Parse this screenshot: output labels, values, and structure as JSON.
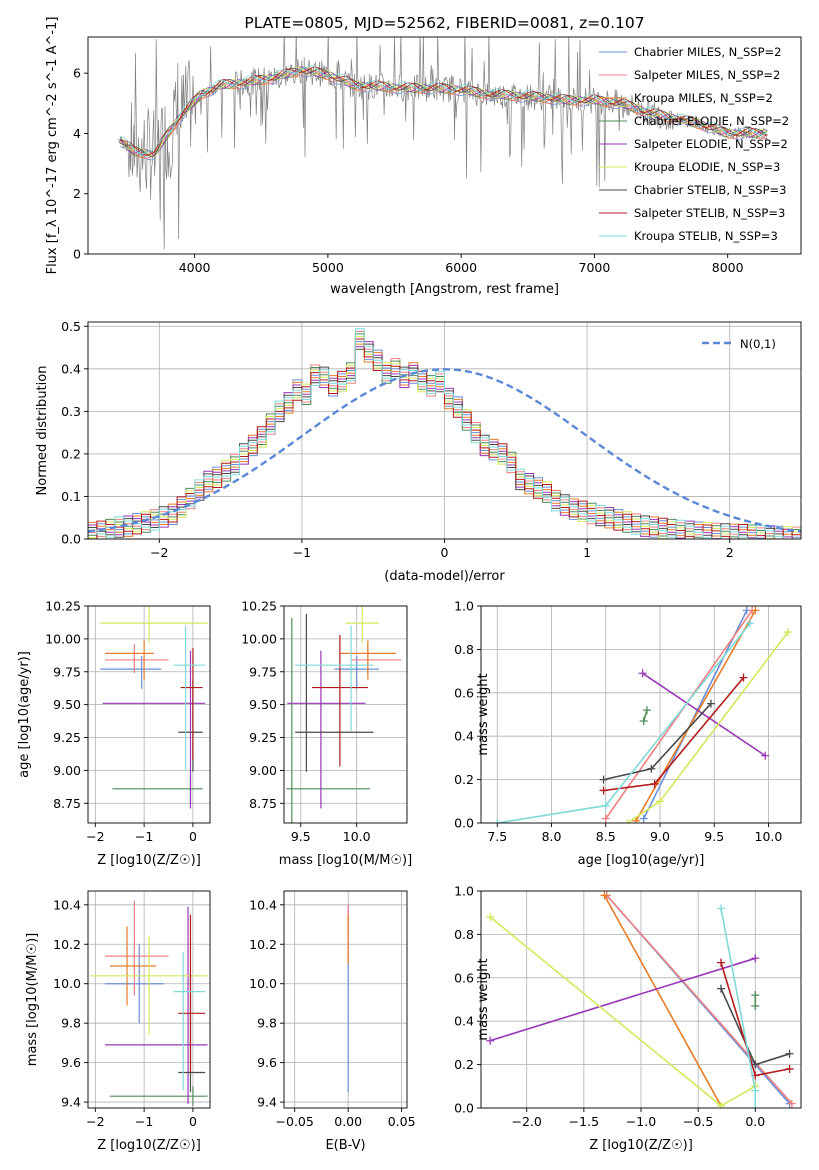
{
  "chart_data": [
    {
      "type": "line",
      "title": "PLATE=0805, MJD=52562, FIBERID=0081, z=0.107",
      "xlabel": "wavelength [Angstrom, rest frame]",
      "ylabel": "Flux [f_λ 10^-17 erg cm^-2 s^-1 A^-1]",
      "xlim": [
        3200,
        8550
      ],
      "ylim": [
        0,
        7.2
      ],
      "xticks": [
        4000,
        5000,
        6000,
        7000,
        8000
      ],
      "yticks": [
        0,
        2,
        4,
        6
      ],
      "grid": false,
      "legend_position": "top-right",
      "data_color": "#808080",
      "data_envelope": [
        [
          3430,
          3.8
        ],
        [
          3550,
          3.4
        ],
        [
          3700,
          3.3
        ],
        [
          3800,
          4.0
        ],
        [
          3900,
          4.6
        ],
        [
          4050,
          5.3
        ],
        [
          4200,
          5.6
        ],
        [
          4400,
          5.7
        ],
        [
          4600,
          5.85
        ],
        [
          4800,
          6.1
        ],
        [
          5000,
          5.95
        ],
        [
          5200,
          5.6
        ],
        [
          5400,
          5.55
        ],
        [
          5600,
          5.5
        ],
        [
          5800,
          5.5
        ],
        [
          6000,
          5.45
        ],
        [
          6200,
          5.3
        ],
        [
          6400,
          5.25
        ],
        [
          6600,
          5.2
        ],
        [
          6800,
          5.1
        ],
        [
          7000,
          5.1
        ],
        [
          7200,
          5.0
        ],
        [
          7400,
          4.7
        ],
        [
          7600,
          4.5
        ],
        [
          7800,
          4.3
        ],
        [
          8000,
          4.0
        ],
        [
          8150,
          4.0
        ],
        [
          8300,
          4.0
        ]
      ],
      "series": [
        {
          "name": "Chabrier MILES, N_SSP=2",
          "color": "#6a8fd8"
        },
        {
          "name": "Salpeter MILES, N_SSP=2",
          "color": "#f08080"
        },
        {
          "name": "Kroupa MILES, N_SSP=2",
          "color": "#e87d2a"
        },
        {
          "name": "Chabrier ELODIE, N_SSP=2",
          "color": "#4f8c5a"
        },
        {
          "name": "Salpeter ELODIE, N_SSP=2",
          "color": "#9a36b8"
        },
        {
          "name": "Kroupa ELODIE, N_SSP=3",
          "color": "#d4e85a"
        },
        {
          "name": "Chabrier STELIB, N_SSP=3",
          "color": "#4a4a4a"
        },
        {
          "name": "Salpeter STELIB, N_SSP=3",
          "color": "#b31b1b"
        },
        {
          "name": "Kroupa STELIB, N_SSP=3",
          "color": "#7fd9d9"
        }
      ]
    },
    {
      "type": "histogram",
      "xlabel": "(data-model)/error",
      "ylabel": "Normed distribution",
      "xlim": [
        -2.5,
        2.5
      ],
      "ylim": [
        0,
        0.51
      ],
      "xticks": [
        -2,
        -1,
        0,
        1,
        2
      ],
      "yticks": [
        0.0,
        0.1,
        0.2,
        0.3,
        0.4,
        0.5
      ],
      "grid": true,
      "legend": "N(0,1)",
      "legend_position": "top-right",
      "bin_width": 0.1,
      "bins_start": -2.5,
      "density": [
        0.015,
        0.018,
        0.022,
        0.028,
        0.03,
        0.036,
        0.04,
        0.045,
        0.052,
        0.058,
        0.075,
        0.095,
        0.115,
        0.135,
        0.145,
        0.16,
        0.175,
        0.2,
        0.22,
        0.24,
        0.27,
        0.3,
        0.32,
        0.35,
        0.34,
        0.385,
        0.38,
        0.36,
        0.37,
        0.39,
        0.47,
        0.44,
        0.42,
        0.39,
        0.4,
        0.38,
        0.39,
        0.37,
        0.36,
        0.37,
        0.33,
        0.31,
        0.28,
        0.25,
        0.22,
        0.21,
        0.2,
        0.18,
        0.14,
        0.13,
        0.12,
        0.11,
        0.09,
        0.08,
        0.07,
        0.065,
        0.06,
        0.055,
        0.05,
        0.045,
        0.04,
        0.035,
        0.03,
        0.028,
        0.025,
        0.022,
        0.02,
        0.018,
        0.016,
        0.015,
        0.013,
        0.012,
        0.011,
        0.01,
        0.009,
        0.008,
        0.007,
        0.006,
        0.005,
        0.004
      ]
    },
    {
      "type": "errorbar",
      "xlabel": "Z [log10(Z/Z☉)]",
      "ylabel": "age [log10(age/yr)]",
      "xlim": [
        -2.15,
        0.35
      ],
      "ylim": [
        8.6,
        10.25
      ],
      "xticks": [
        -2,
        -1,
        0
      ],
      "yticks": [
        8.75,
        9.0,
        9.25,
        9.5,
        9.75,
        10.0,
        10.25
      ],
      "points": [
        {
          "x": -1.05,
          "xerr": [
            0.85,
            0.4
          ],
          "y": 9.77,
          "yerr": [
            0.15,
            0.1
          ]
        },
        {
          "x": -1.2,
          "xerr": [
            0.6,
            0.7
          ],
          "y": 9.84,
          "yerr": [
            0.1,
            0.12
          ]
        },
        {
          "x": -1.0,
          "xerr": [
            0.8,
            0.2
          ],
          "y": 9.89,
          "yerr": [
            0.2,
            0.1
          ]
        },
        {
          "x": -0.05,
          "xerr": [
            1.6,
            0.25
          ],
          "y": 8.86,
          "yerr": [
            0.1,
            0.1
          ]
        },
        {
          "x": -0.05,
          "xerr": [
            1.8,
            0.3
          ],
          "y": 9.51,
          "yerr": [
            0.8,
            0.4
          ]
        },
        {
          "x": -0.9,
          "xerr": [
            1.0,
            1.2
          ],
          "y": 10.12,
          "yerr": [
            0.15,
            0.15
          ]
        },
        {
          "x": 0.0,
          "xerr": [
            0.3,
            0.2
          ],
          "y": 9.29,
          "yerr": [
            0.3,
            0.4
          ]
        },
        {
          "x": 0.0,
          "xerr": [
            0.25,
            0.2
          ],
          "y": 9.63,
          "yerr": [
            0.55,
            0.3
          ]
        },
        {
          "x": -0.15,
          "xerr": [
            0.25,
            0.4
          ],
          "y": 9.8,
          "yerr": [
            0.8,
            0.3
          ]
        }
      ]
    },
    {
      "type": "errorbar",
      "xlabel": "mass [log10(M/M☉)]",
      "ylabel": "",
      "xlim": [
        9.35,
        10.45
      ],
      "ylim": [
        8.6,
        10.25
      ],
      "xticks": [
        9.5,
        10.0
      ],
      "yticks": [
        8.75,
        9.0,
        9.25,
        9.5,
        9.75,
        10.0,
        10.25
      ],
      "points": [
        {
          "x": 10.0,
          "xerr": [
            0.2,
            0.2
          ],
          "y": 9.77,
          "yerr": [
            0.15,
            0.1
          ]
        },
        {
          "x": 10.1,
          "xerr": [
            0.15,
            0.3
          ],
          "y": 9.84,
          "yerr": [
            0.1,
            0.12
          ]
        },
        {
          "x": 10.1,
          "xerr": [
            0.25,
            0.25
          ],
          "y": 9.89,
          "yerr": [
            0.2,
            0.1
          ]
        },
        {
          "x": 9.42,
          "xerr": [
            0.05,
            0.7
          ],
          "y": 8.86,
          "yerr": [
            0.3,
            1.3
          ]
        },
        {
          "x": 9.68,
          "xerr": [
            0.3,
            0.4
          ],
          "y": 9.51,
          "yerr": [
            0.8,
            0.4
          ]
        },
        {
          "x": 10.05,
          "xerr": [
            0.15,
            0.15
          ],
          "y": 10.12,
          "yerr": [
            0.15,
            0.15
          ]
        },
        {
          "x": 9.55,
          "xerr": [
            0.1,
            0.6
          ],
          "y": 9.29,
          "yerr": [
            0.3,
            0.9
          ]
        },
        {
          "x": 9.85,
          "xerr": [
            0.25,
            0.25
          ],
          "y": 9.63,
          "yerr": [
            0.6,
            0.4
          ]
        },
        {
          "x": 9.95,
          "xerr": [
            0.5,
            0.2
          ],
          "y": 9.8,
          "yerr": [
            0.5,
            0.3
          ]
        }
      ]
    },
    {
      "type": "line",
      "xlabel": "age [log10(age/yr)]",
      "ylabel": "mass weight",
      "xlim": [
        7.35,
        10.3
      ],
      "ylim": [
        0,
        1.0
      ],
      "xticks": [
        7.5,
        8.0,
        8.5,
        9.0,
        9.5,
        10.0
      ],
      "yticks": [
        0.0,
        0.2,
        0.4,
        0.6,
        0.8,
        1.0
      ],
      "grid": true,
      "series": [
        {
          "color": "#6a8fd8",
          "x": [
            8.85,
            9.8
          ],
          "y": [
            0.02,
            0.98
          ]
        },
        {
          "color": "#f08080",
          "x": [
            8.5,
            9.85
          ],
          "y": [
            0.02,
            0.98
          ]
        },
        {
          "color": "#e87d2a",
          "x": [
            8.78,
            9.88
          ],
          "y": [
            0.01,
            0.98
          ]
        },
        {
          "color": "#4f8c5a",
          "x": [
            8.85,
            8.88
          ],
          "y": [
            0.47,
            0.52
          ]
        },
        {
          "color": "#9a36b8",
          "x": [
            8.84,
            9.97
          ],
          "y": [
            0.69,
            0.31
          ]
        },
        {
          "color": "#d4e85a",
          "x": [
            8.7,
            9.0,
            10.18
          ],
          "y": [
            0.0,
            0.1,
            0.88
          ]
        },
        {
          "color": "#4a4a4a",
          "x": [
            8.48,
            8.92,
            9.47
          ],
          "y": [
            0.2,
            0.25,
            0.55
          ]
        },
        {
          "color": "#b31b1b",
          "x": [
            8.48,
            8.95,
            9.77
          ],
          "y": [
            0.15,
            0.18,
            0.67
          ]
        },
        {
          "color": "#7fd9d9",
          "x": [
            7.5,
            8.5,
            9.83
          ],
          "y": [
            0.0,
            0.08,
            0.92
          ]
        }
      ]
    },
    {
      "type": "errorbar",
      "xlabel": "Z [log10(Z/Z☉)]",
      "ylabel": "mass [log10(M/M☉)]",
      "xlim": [
        -2.15,
        0.35
      ],
      "ylim": [
        9.37,
        10.47
      ],
      "xticks": [
        -2,
        -1,
        0
      ],
      "yticks": [
        9.4,
        9.6,
        9.8,
        10.0,
        10.2,
        10.4
      ],
      "points": [
        {
          "x": -1.1,
          "xerr": [
            0.7,
            0.5
          ],
          "y": 10.0,
          "yerr": [
            0.2,
            0.2
          ]
        },
        {
          "x": -1.2,
          "xerr": [
            0.6,
            0.7
          ],
          "y": 10.14,
          "yerr": [
            0.2,
            0.28
          ]
        },
        {
          "x": -1.35,
          "xerr": [
            0.35,
            0.6
          ],
          "y": 10.09,
          "yerr": [
            0.2,
            0.2
          ]
        },
        {
          "x": 0.0,
          "xerr": [
            1.7,
            0.3
          ],
          "y": 9.43,
          "yerr": [
            0.05,
            0.05
          ]
        },
        {
          "x": -0.1,
          "xerr": [
            1.7,
            0.4
          ],
          "y": 9.69,
          "yerr": [
            0.3,
            0.7
          ]
        },
        {
          "x": -0.9,
          "xerr": [
            1.2,
            1.2
          ],
          "y": 10.04,
          "yerr": [
            0.3,
            0.2
          ]
        },
        {
          "x": -0.05,
          "xerr": [
            0.25,
            0.3
          ],
          "y": 9.55,
          "yerr": [
            0.1,
            0.5
          ]
        },
        {
          "x": -0.05,
          "xerr": [
            0.25,
            0.3
          ],
          "y": 9.85,
          "yerr": [
            0.3,
            0.5
          ]
        },
        {
          "x": -0.2,
          "xerr": [
            0.2,
            0.45
          ],
          "y": 9.96,
          "yerr": [
            0.5,
            0.2
          ]
        }
      ]
    },
    {
      "type": "errorbar",
      "xlabel": "E(B-V)",
      "ylabel": "",
      "xlim": [
        -0.06,
        0.055
      ],
      "ylim": [
        9.37,
        10.47
      ],
      "xticks": [
        -0.05,
        0.0,
        0.05
      ],
      "yticks": [
        9.4,
        9.6,
        9.8,
        10.0,
        10.2,
        10.4
      ],
      "points": [
        {
          "x": 0.0,
          "xerr": [
            0,
            0
          ],
          "y": 9.9,
          "yerr": [
            0.45,
            0.5
          ]
        },
        {
          "x": 0.0,
          "xerr": [
            0,
            0
          ],
          "y": 10.2,
          "yerr": [
            0.1,
            0.2
          ]
        },
        {
          "x": 0.0,
          "xerr": [
            0,
            0
          ],
          "y": 10.2,
          "yerr": [
            0.1,
            0.15
          ]
        }
      ]
    },
    {
      "type": "line",
      "xlabel": "Z [log10(Z/Z☉)]",
      "ylabel": "mass weight",
      "xlim": [
        -2.4,
        0.4
      ],
      "ylim": [
        0,
        1.0
      ],
      "xticks": [
        -2.0,
        -1.5,
        -1.0,
        -0.5,
        0.0
      ],
      "yticks": [
        0.0,
        0.2,
        0.4,
        0.6,
        0.8,
        1.0
      ],
      "grid": true,
      "series": [
        {
          "color": "#6a8fd8",
          "x": [
            -1.3,
            0.3
          ],
          "y": [
            0.98,
            0.02
          ]
        },
        {
          "color": "#f08080",
          "x": [
            -1.3,
            0.32
          ],
          "y": [
            0.98,
            0.02
          ]
        },
        {
          "color": "#e87d2a",
          "x": [
            -1.32,
            -0.3
          ],
          "y": [
            0.98,
            0.01
          ]
        },
        {
          "color": "#4f8c5a",
          "x": [
            0.0,
            0.0
          ],
          "y": [
            0.47,
            0.52
          ]
        },
        {
          "color": "#9a36b8",
          "x": [
            -2.32,
            0.0
          ],
          "y": [
            0.31,
            0.69
          ]
        },
        {
          "color": "#d4e85a",
          "x": [
            -2.32,
            -0.3,
            0.0
          ],
          "y": [
            0.88,
            0.01,
            0.1
          ]
        },
        {
          "color": "#4a4a4a",
          "x": [
            -0.3,
            0.0,
            0.3
          ],
          "y": [
            0.55,
            0.2,
            0.25
          ]
        },
        {
          "color": "#b31b1b",
          "x": [
            -0.3,
            0.0,
            0.3
          ],
          "y": [
            0.67,
            0.15,
            0.18
          ]
        },
        {
          "color": "#7fd9d9",
          "x": [
            -0.3,
            0.0,
            0.0
          ],
          "y": [
            0.92,
            0.08,
            0.0
          ]
        }
      ]
    }
  ]
}
